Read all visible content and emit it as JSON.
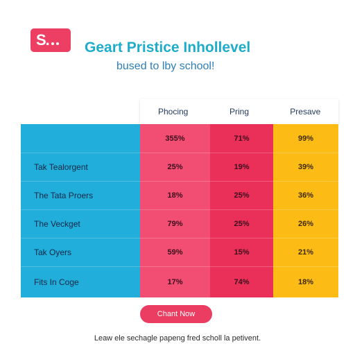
{
  "brand": {
    "logo_text": "S.",
    "accent": "#ec3f63"
  },
  "header": {
    "title": "Geart Pristice Inhollevel",
    "subtitle": "bused to lby school!"
  },
  "table": {
    "columns": [
      "Phocing",
      "Pring",
      "Presave"
    ],
    "top_values": [
      "355%",
      "71%",
      "99%"
    ],
    "rows": [
      {
        "label": "Tak Tealorgent",
        "values": [
          "25%",
          "19%",
          "39%"
        ]
      },
      {
        "label": "The Tata Proers",
        "values": [
          "18%",
          "25%",
          "36%"
        ]
      },
      {
        "label": "The Veckget",
        "values": [
          "79%",
          "25%",
          "26%"
        ]
      },
      {
        "label": "Tak Oyers",
        "values": [
          "59%",
          "15%",
          "21%"
        ]
      },
      {
        "label": "Fits In Coge",
        "values": [
          "17%",
          "74%",
          "18%"
        ]
      }
    ],
    "colors": {
      "label_column": "#21aeda",
      "column_1": "#f24d72",
      "column_2": "#ea2f58",
      "column_3": "#fdbb15"
    }
  },
  "cta": {
    "label": "Chant Now"
  },
  "footer": {
    "text": "Leaw ele sechagle papeng fred scholl la petivent."
  }
}
